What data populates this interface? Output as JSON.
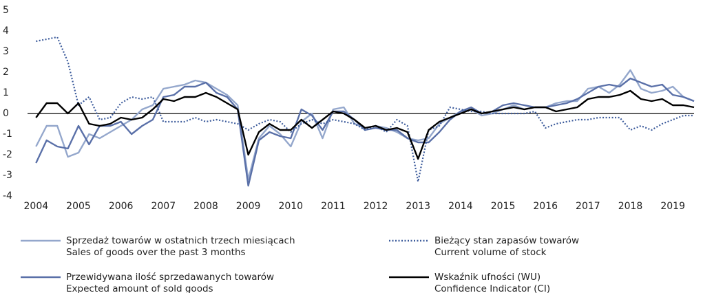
{
  "chart_data": {
    "type": "line",
    "x": [
      2004,
      2004.25,
      2004.5,
      2004.75,
      2005,
      2005.25,
      2005.5,
      2005.75,
      2006,
      2006.25,
      2006.5,
      2006.75,
      2007,
      2007.25,
      2007.5,
      2007.75,
      2008,
      2008.25,
      2008.5,
      2008.75,
      2009,
      2009.25,
      2009.5,
      2009.75,
      2010,
      2010.25,
      2010.5,
      2010.75,
      2011,
      2011.25,
      2011.5,
      2011.75,
      2012,
      2012.25,
      2012.5,
      2012.75,
      2013,
      2013.25,
      2013.5,
      2013.75,
      2014,
      2014.25,
      2014.5,
      2014.75,
      2015,
      2015.25,
      2015.5,
      2015.75,
      2016,
      2016.25,
      2016.5,
      2016.75,
      2017,
      2017.25,
      2017.5,
      2017.75,
      2018,
      2018.25,
      2018.5,
      2018.75,
      2019,
      2019.25,
      2019.5
    ],
    "series": [
      {
        "name": "Sprzedaż towarów w ostatnich trzech miesiącach\nSales of goods over the past 3 months",
        "color": "#94a7cc",
        "style": "solid",
        "values": [
          -1.6,
          -0.6,
          -0.6,
          -2.1,
          -1.9,
          -1.0,
          -1.2,
          -0.9,
          -0.6,
          -0.3,
          0.2,
          0.4,
          1.2,
          1.3,
          1.4,
          1.6,
          1.5,
          1.2,
          0.9,
          0.4,
          -3.2,
          -1.2,
          -0.6,
          -1.0,
          -1.6,
          -0.4,
          0.0,
          -1.2,
          0.2,
          0.3,
          -0.5,
          -0.7,
          -0.6,
          -0.7,
          -0.9,
          -1.2,
          -1.3,
          -1.2,
          -0.5,
          -0.2,
          0.1,
          0.2,
          -0.1,
          0.0,
          0.2,
          0.4,
          0.2,
          0.3,
          0.3,
          0.5,
          0.6,
          0.6,
          1.2,
          1.3,
          1.0,
          1.4,
          2.1,
          1.2,
          1.0,
          1.1,
          1.3,
          0.8,
          0.6
        ]
      },
      {
        "name": "Bieżący stan zapasów towarów\nCurrent volume of stock",
        "color": "#3d5c9c",
        "style": "dotted",
        "values": [
          3.5,
          3.6,
          3.7,
          2.5,
          0.4,
          0.8,
          -0.3,
          -0.2,
          0.5,
          0.8,
          0.7,
          0.8,
          -0.4,
          -0.4,
          -0.4,
          -0.2,
          -0.4,
          -0.3,
          -0.4,
          -0.5,
          -0.8,
          -0.5,
          -0.3,
          -0.4,
          -0.9,
          -0.5,
          -0.3,
          -0.5,
          -0.3,
          -0.4,
          -0.5,
          -0.8,
          -0.6,
          -0.9,
          -0.3,
          -0.6,
          -3.3,
          -0.8,
          -0.6,
          0.3,
          0.2,
          0.1,
          0.1,
          0.0,
          0.0,
          0.0,
          0.0,
          0.1,
          -0.7,
          -0.5,
          -0.4,
          -0.3,
          -0.3,
          -0.2,
          -0.2,
          -0.2,
          -0.8,
          -0.6,
          -0.8,
          -0.5,
          -0.3,
          -0.1,
          -0.1
        ]
      },
      {
        "name": "Przewidywana ilość sprzedawanych towarów\nExpected amount of sold goods",
        "color": "#5a70a8",
        "style": "solid",
        "values": [
          -2.4,
          -1.3,
          -1.6,
          -1.7,
          -0.6,
          -1.5,
          -0.6,
          -0.6,
          -0.4,
          -1.0,
          -0.6,
          -0.3,
          0.8,
          0.9,
          1.3,
          1.3,
          1.5,
          1.0,
          0.8,
          0.2,
          -3.5,
          -1.3,
          -0.9,
          -1.1,
          -1.2,
          0.2,
          -0.1,
          -0.8,
          0.1,
          0.1,
          -0.3,
          -0.8,
          -0.7,
          -0.8,
          -0.8,
          -1.2,
          -1.4,
          -1.4,
          -0.9,
          -0.3,
          0.1,
          0.3,
          0.0,
          0.1,
          0.4,
          0.5,
          0.4,
          0.3,
          0.3,
          0.4,
          0.5,
          0.7,
          1.0,
          1.3,
          1.4,
          1.3,
          1.7,
          1.5,
          1.3,
          1.4,
          0.9,
          0.8,
          0.6
        ]
      },
      {
        "name": "Wskaźnik ufności (WU)\nConfidence Indicator (CI)",
        "color": "#000000",
        "style": "solid",
        "values": [
          -0.2,
          0.5,
          0.5,
          0.0,
          0.5,
          -0.5,
          -0.6,
          -0.5,
          -0.2,
          -0.3,
          -0.2,
          0.2,
          0.7,
          0.6,
          0.8,
          0.8,
          1.0,
          0.8,
          0.5,
          0.2,
          -2.0,
          -0.9,
          -0.5,
          -0.8,
          -0.8,
          -0.3,
          -0.7,
          -0.3,
          0.1,
          0.0,
          -0.3,
          -0.7,
          -0.6,
          -0.8,
          -0.7,
          -0.9,
          -2.2,
          -0.8,
          -0.4,
          -0.2,
          0.0,
          0.2,
          0.0,
          0.1,
          0.2,
          0.3,
          0.2,
          0.3,
          0.3,
          0.1,
          0.2,
          0.3,
          0.7,
          0.8,
          0.8,
          0.9,
          1.1,
          0.7,
          0.6,
          0.7,
          0.4,
          0.4,
          0.3
        ]
      }
    ],
    "xlim": [
      2003.8,
      2019.5
    ],
    "xticks": [
      2004,
      2005,
      2006,
      2007,
      2008,
      2009,
      2010,
      2011,
      2012,
      2013,
      2014,
      2015,
      2016,
      2017,
      2018,
      2019
    ],
    "ylim": [
      -4,
      5
    ],
    "yticks": [
      -4,
      -3,
      -2,
      -1,
      0,
      1,
      2,
      3,
      4,
      5
    ],
    "grid": false
  }
}
